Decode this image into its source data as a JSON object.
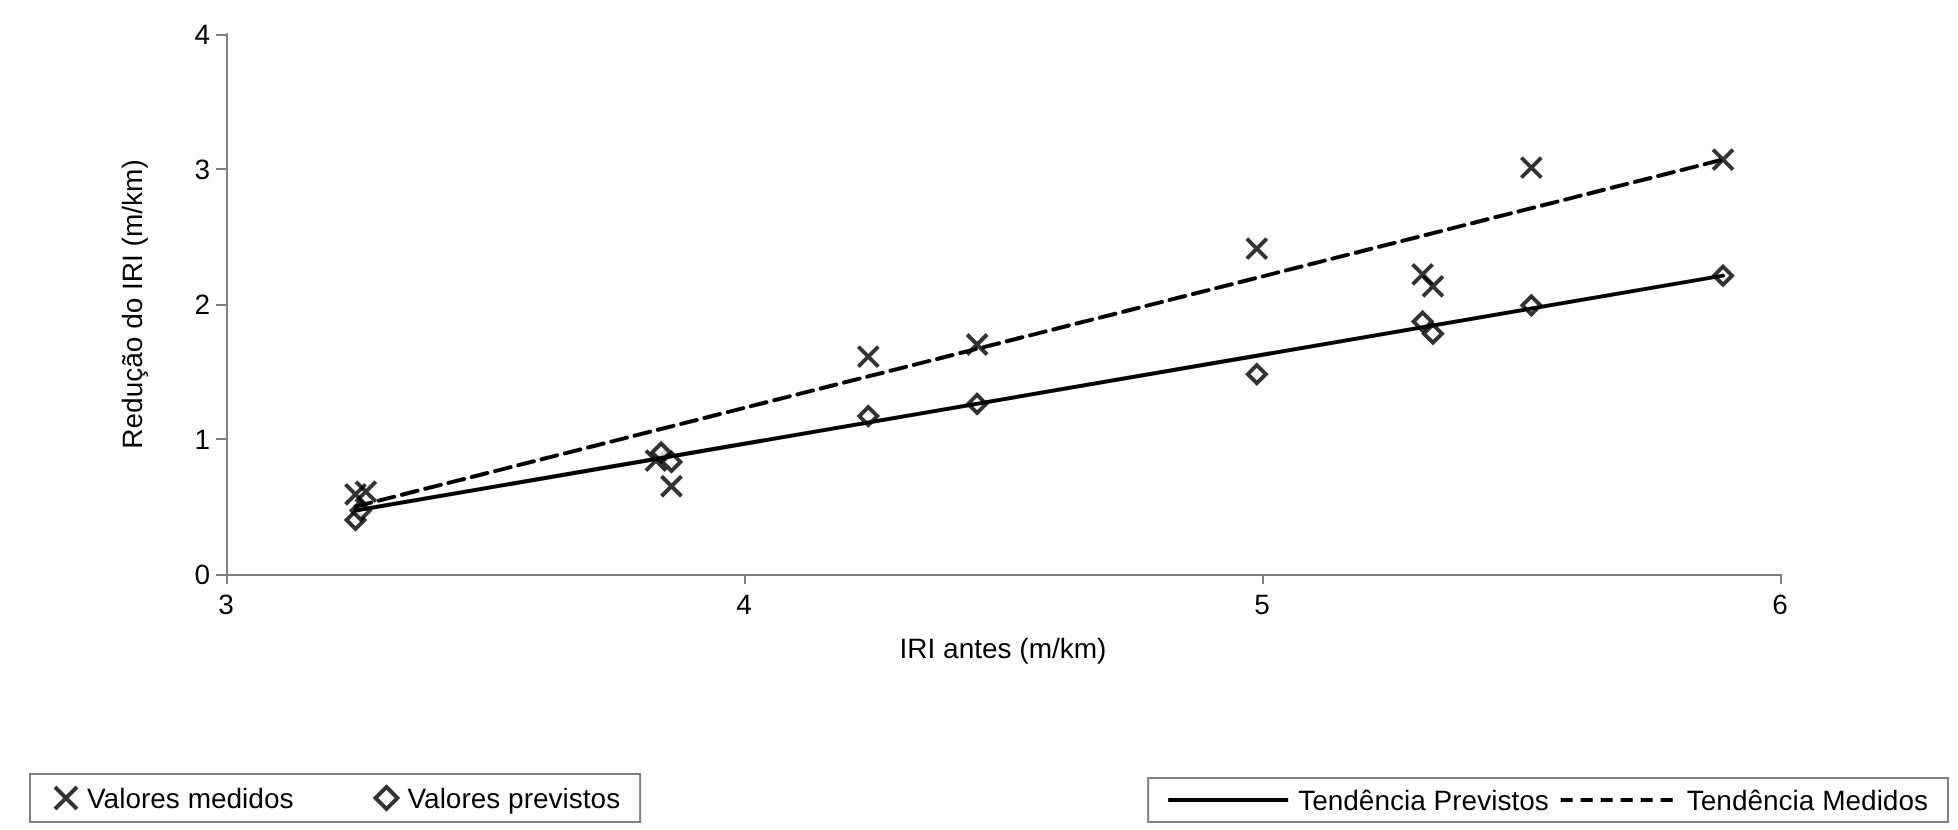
{
  "chart_data": {
    "type": "scatter",
    "xlabel": "IRI antes (m/km)",
    "ylabel": "Redução do IRI (m/km)",
    "xlim": [
      3,
      6
    ],
    "xticks": [
      3,
      4,
      5,
      6
    ],
    "ylim": [
      0,
      4
    ],
    "yticks": [
      0,
      1,
      2,
      3,
      4
    ],
    "grid": false,
    "legend": "bottom",
    "series": [
      {
        "name": "Valores medidos",
        "marker": "cross",
        "color": "#000000",
        "x": [
          3.25,
          3.27,
          3.83,
          3.86,
          4.24,
          4.45,
          4.99,
          5.31,
          5.33,
          5.52,
          5.89
        ],
        "values": [
          0.59,
          0.61,
          0.84,
          0.65,
          1.61,
          1.7,
          2.41,
          2.22,
          2.13,
          3.01,
          3.07
        ]
      },
      {
        "name": "Valores previstos",
        "marker": "diamond",
        "color": "#000000",
        "x": [
          3.25,
          3.26,
          3.84,
          3.86,
          4.24,
          4.45,
          4.99,
          5.31,
          5.33,
          5.52,
          5.89
        ],
        "values": [
          0.4,
          0.47,
          0.9,
          0.83,
          1.17,
          1.26,
          1.48,
          1.87,
          1.78,
          1.99,
          2.21
        ]
      },
      {
        "name": "Tendência Previstos",
        "type": "line",
        "marker": "none",
        "line_style": "solid",
        "color": "#000000",
        "x": [
          3.25,
          5.89
        ],
        "values": [
          0.47,
          2.21
        ]
      },
      {
        "name": "Tendência Medidos",
        "type": "line",
        "marker": "none",
        "line_style": "dashed",
        "color": "#000000",
        "x": [
          3.25,
          5.89
        ],
        "values": [
          0.5,
          3.07
        ]
      }
    ]
  }
}
